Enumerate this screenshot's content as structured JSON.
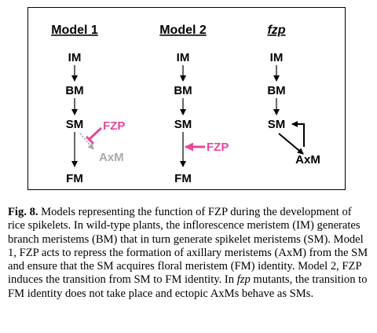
{
  "diagram": {
    "model1": {
      "header": "Model 1",
      "im": "IM",
      "bm": "BM",
      "sm": "SM",
      "regulator": "FZP",
      "axm": "AxM",
      "fm": "FM"
    },
    "model2": {
      "header": "Model 2",
      "im": "IM",
      "bm": "BM",
      "sm": "SM",
      "regulator": "FZP",
      "fm": "FM"
    },
    "fzp": {
      "header": "fzp",
      "im": "IM",
      "bm": "BM",
      "sm": "SM",
      "axm": "AxM"
    },
    "colors": {
      "fzp": "#e8479b",
      "axm_model1": "#a9a9a9",
      "text": "#000000"
    }
  },
  "caption": {
    "label": "Fig. 8.",
    "part1": " Models representing the function of FZP during the development of rice spikelets. In wild-type plants, the inflorescence meristem (IM) generates branch meristems (BM) that in turn generate spikelet meristems (SM). Model 1, FZP acts to repress the formation of axillary meristems (AxM) from the SM and ensure that the SM acquires floral meristem (FM) identity. Model 2, FZP induces the transition from SM to FM identity. In ",
    "italic": "fzp",
    "part2": " mutants, the transition to FM identity does not take place and ectopic AxMs behave as SMs."
  }
}
